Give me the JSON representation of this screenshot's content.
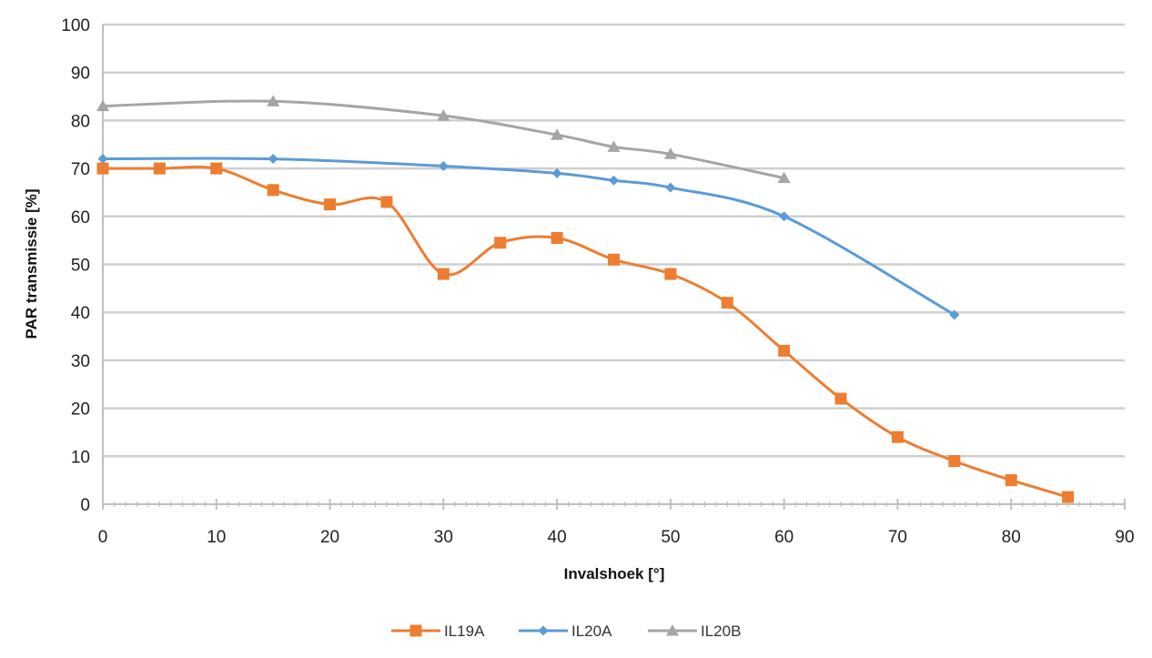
{
  "chart_data": {
    "type": "line",
    "title": "",
    "xlabel": "Invalshoek [°]",
    "ylabel": "PAR transmissie [%]",
    "xlim": [
      0,
      90
    ],
    "ylim": [
      0,
      100
    ],
    "xticks": [
      0,
      10,
      20,
      30,
      40,
      50,
      60,
      70,
      80,
      90
    ],
    "yticks": [
      0,
      10,
      20,
      30,
      40,
      50,
      60,
      70,
      80,
      90,
      100
    ],
    "grid": "horizontal",
    "legend_position": "bottom",
    "series": [
      {
        "name": "IL19A",
        "color": "#ED7D31",
        "marker": "square",
        "x": [
          0,
          5,
          10,
          15,
          20,
          25,
          30,
          35,
          40,
          45,
          50,
          55,
          60,
          65,
          70,
          75,
          80,
          85
        ],
        "y": [
          70,
          70,
          70,
          65.5,
          62.5,
          63,
          48,
          54.5,
          55.5,
          51,
          48,
          42,
          32,
          22,
          14,
          9,
          5,
          1.5
        ]
      },
      {
        "name": "IL20A",
        "color": "#5B9BD5",
        "marker": "diamond",
        "x": [
          0,
          15,
          30,
          40,
          45,
          50,
          60,
          75
        ],
        "y": [
          72,
          72,
          70.5,
          69,
          67.5,
          66,
          60,
          39.5
        ]
      },
      {
        "name": "IL20B",
        "color": "#A5A5A5",
        "marker": "triangle",
        "x": [
          0,
          15,
          30,
          40,
          45,
          50,
          60
        ],
        "y": [
          83,
          84,
          81,
          77,
          74.5,
          73,
          68
        ]
      }
    ]
  }
}
